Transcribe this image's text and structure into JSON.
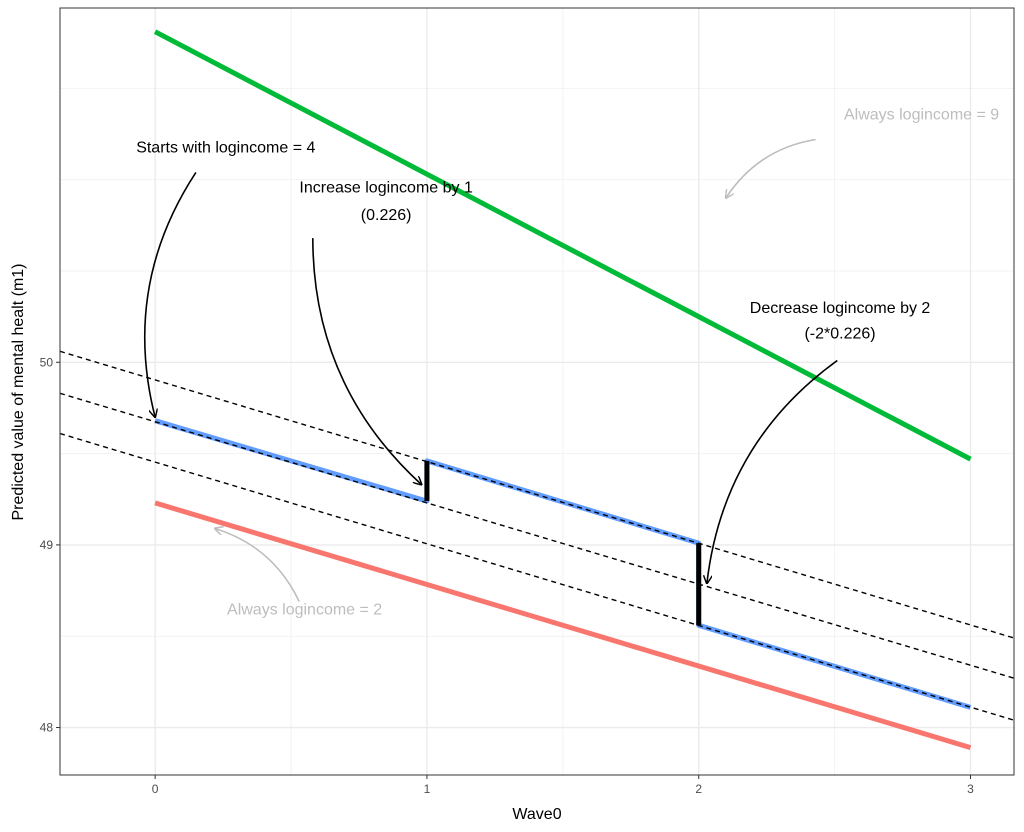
{
  "chart_data": {
    "type": "line",
    "xlabel": "Wave0",
    "ylabel": "Predicted value of mental healt (m1)",
    "xlim": [
      -0.35,
      3.16
    ],
    "ylim": [
      47.74,
      51.94
    ],
    "x_ticks": [
      0,
      1,
      2,
      3
    ],
    "x_tick_labels": [
      "0",
      "1",
      "2",
      "3"
    ],
    "y_ticks": [
      48,
      49,
      50
    ],
    "y_tick_labels": [
      "48",
      "49",
      "50"
    ],
    "grid": true,
    "legend": "none",
    "series": [
      {
        "color": "#00BA38",
        "points": [
          [
            0,
            51.81
          ],
          [
            3,
            49.47
          ]
        ]
      },
      {
        "color": "#F8766D",
        "points": [
          [
            0,
            49.23
          ],
          [
            3,
            47.89
          ]
        ]
      },
      {
        "color": "#619CFF",
        "points": [
          [
            0,
            49.68
          ],
          [
            1,
            49.24
          ],
          [
            1,
            49.46
          ],
          [
            2,
            49.01
          ],
          [
            2,
            48.56
          ],
          [
            3,
            48.11
          ]
        ]
      }
    ],
    "reference_lines": [
      {
        "style": "dashed",
        "points": [
          [
            -0.35,
            50.06
          ],
          [
            3.16,
            48.49
          ]
        ]
      },
      {
        "style": "dashed",
        "points": [
          [
            -0.35,
            49.83
          ],
          [
            3.16,
            48.27
          ]
        ]
      },
      {
        "style": "dashed",
        "points": [
          [
            -0.35,
            49.61
          ],
          [
            3.16,
            48.04
          ]
        ]
      }
    ],
    "jumps": [
      {
        "x": 1,
        "from": 49.24,
        "to": 49.46
      },
      {
        "x": 2,
        "from": 49.01,
        "to": 48.56
      }
    ],
    "annotations": [
      {
        "id": "always9",
        "lines": [
          "Always logincome = 9"
        ],
        "color": "#bdbdbd",
        "x": 2.82,
        "y": [
          51.33
        ],
        "arrow_from": [
          2.43,
          51.22
        ],
        "arrow_to": [
          2.1,
          50.9
        ],
        "arrow_color": "#bdbdbd"
      },
      {
        "id": "starts4",
        "lines": [
          "Starts with logincome = 4"
        ],
        "color": "#000000",
        "x": 0.26,
        "y": [
          51.15
        ],
        "arrow_from": [
          0.15,
          51.04
        ],
        "arrow_to": [
          0.0,
          49.7
        ],
        "arrow_color": "#000000"
      },
      {
        "id": "increase",
        "lines": [
          "Increase logincome by 1",
          "(0.226)"
        ],
        "color": "#000000",
        "x": 0.85,
        "y": [
          50.93,
          50.78
        ],
        "arrow_from": [
          0.58,
          50.68
        ],
        "arrow_to": [
          0.98,
          49.33
        ],
        "arrow_color": "#000000"
      },
      {
        "id": "decrease",
        "lines": [
          "Decrease logincome by 2",
          "(-2*0.226)"
        ],
        "color": "#000000",
        "x": 2.52,
        "y": [
          50.27,
          50.13
        ],
        "arrow_from": [
          2.51,
          50.01
        ],
        "arrow_to": [
          2.03,
          48.79
        ],
        "arrow_color": "#000000"
      },
      {
        "id": "always2",
        "lines": [
          "Always logincome = 2"
        ],
        "color": "#bdbdbd",
        "x": 0.55,
        "y": [
          48.62
        ],
        "arrow_from": [
          0.53,
          48.69
        ],
        "arrow_to": [
          0.22,
          49.09
        ],
        "arrow_color": "#bdbdbd"
      }
    ]
  }
}
